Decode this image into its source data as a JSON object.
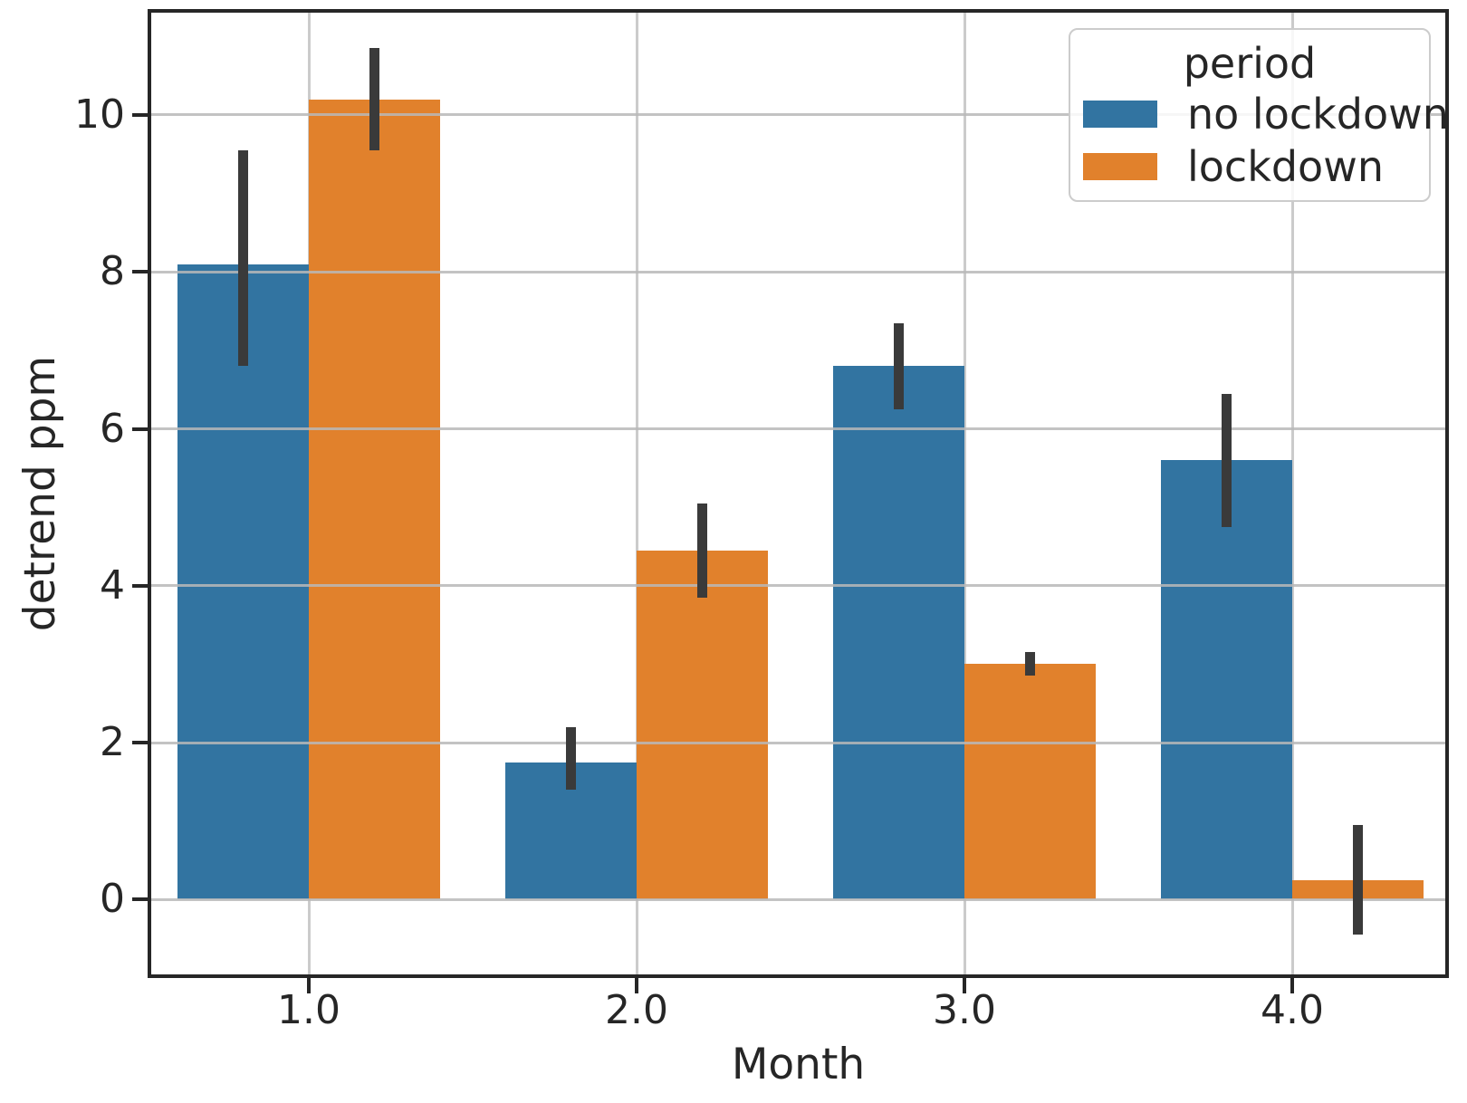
{
  "chart_data": {
    "type": "bar",
    "title": "",
    "xlabel": "Month",
    "ylabel": "detrend ppm",
    "categories": [
      "1.0",
      "2.0",
      "3.0",
      "4.0"
    ],
    "series": [
      {
        "name": "no lockdown",
        "color": "#3274a1",
        "values": [
          8.1,
          1.75,
          6.8,
          5.6
        ],
        "error_low": [
          6.8,
          1.4,
          6.25,
          4.75
        ],
        "error_high": [
          9.55,
          2.2,
          7.35,
          6.45
        ]
      },
      {
        "name": "lockdown",
        "color": "#e1812c",
        "values": [
          10.2,
          4.45,
          3.0,
          0.25
        ],
        "error_low": [
          9.55,
          3.85,
          2.85,
          -0.45
        ],
        "error_high": [
          10.85,
          5.05,
          3.15,
          0.95
        ]
      }
    ],
    "yticks": [
      "0",
      "2",
      "4",
      "6",
      "8",
      "10"
    ],
    "ytick_values": [
      0,
      2,
      4,
      6,
      8,
      10
    ],
    "ylim": [
      -1.0,
      11.35
    ],
    "grid": true,
    "legend": {
      "title": "period",
      "position": "upper right"
    },
    "colors": {
      "no_lockdown": "#3274a1",
      "lockdown": "#e1812c",
      "error_bar": "#3a3a3a",
      "gridline": "#cbcbcb",
      "spine": "#262626",
      "background": "#ffffff"
    }
  }
}
